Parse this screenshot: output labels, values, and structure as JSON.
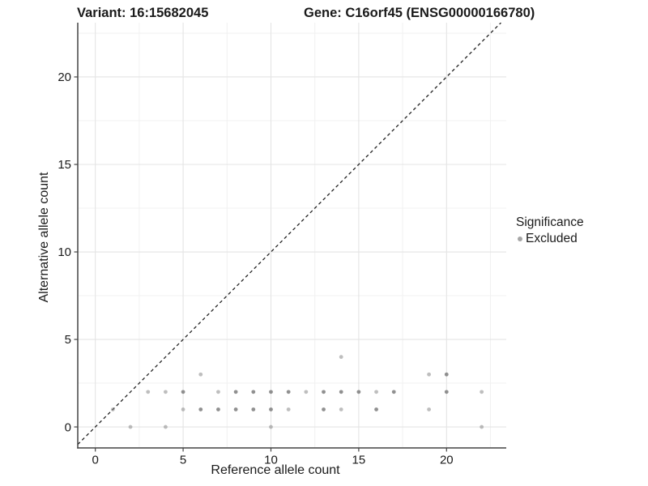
{
  "colors": {
    "background": "#ffffff",
    "grid_major": "#e4e4e4",
    "grid_minor": "#f1f1f1",
    "axis_line": "#444444",
    "tick_text": "#1a1a1a",
    "identity_line": "#222222",
    "point_base": "#7d7d7d",
    "legend_swatch": "#a6a6a6"
  },
  "chart_data": {
    "type": "scatter",
    "title_left": "Variant: 16:15682045",
    "title_right": "Gene: C16orf45 (ENSG00000166780)",
    "xlabel": "Reference allele count",
    "ylabel": "Alternative allele count",
    "xlim": [
      -1.0,
      23.4
    ],
    "ylim": [
      -1.2,
      23.1
    ],
    "x_major_ticks": [
      0,
      5,
      10,
      15,
      20
    ],
    "x_minor_gridlines": [
      2.5,
      7.5,
      12.5,
      17.5,
      22.5
    ],
    "y_major_ticks": [
      0,
      5,
      10,
      15,
      20
    ],
    "y_minor_gridlines": [
      2.5,
      7.5,
      12.5,
      17.5,
      22.5
    ],
    "grid": "major+minor",
    "identity_line": {
      "style": "dashed",
      "equation": "y = x"
    },
    "legend": {
      "title": "Significance",
      "position": "right",
      "items": [
        {
          "label": "Excluded",
          "color": "#7d7d7d",
          "swatch": "#a6a6a6"
        }
      ]
    },
    "series": [
      {
        "name": "Excluded",
        "color": "#7d7d7d",
        "shade_opacity": {
          "l": 0.5,
          "d": 0.85
        },
        "points": [
          [
            2,
            0,
            "l"
          ],
          [
            4,
            0,
            "l"
          ],
          [
            10,
            0,
            "l"
          ],
          [
            22,
            0,
            "l"
          ],
          [
            1,
            1,
            "l"
          ],
          [
            5,
            1,
            "l"
          ],
          [
            6,
            1,
            "d"
          ],
          [
            7,
            1,
            "d"
          ],
          [
            8,
            1,
            "d"
          ],
          [
            9,
            1,
            "d"
          ],
          [
            10,
            1,
            "d"
          ],
          [
            11,
            1,
            "l"
          ],
          [
            13,
            1,
            "d"
          ],
          [
            14,
            1,
            "l"
          ],
          [
            16,
            1,
            "d"
          ],
          [
            19,
            1,
            "l"
          ],
          [
            3,
            2,
            "l"
          ],
          [
            4,
            2,
            "l"
          ],
          [
            5,
            2,
            "d"
          ],
          [
            7,
            2,
            "l"
          ],
          [
            8,
            2,
            "d"
          ],
          [
            9,
            2,
            "d"
          ],
          [
            10,
            2,
            "d"
          ],
          [
            11,
            2,
            "d"
          ],
          [
            12,
            2,
            "l"
          ],
          [
            13,
            2,
            "d"
          ],
          [
            14,
            2,
            "d"
          ],
          [
            15,
            2,
            "d"
          ],
          [
            16,
            2,
            "l"
          ],
          [
            17,
            2,
            "d"
          ],
          [
            20,
            2,
            "d"
          ],
          [
            22,
            2,
            "l"
          ],
          [
            6,
            3,
            "l"
          ],
          [
            19,
            3,
            "l"
          ],
          [
            20,
            3,
            "d"
          ],
          [
            14,
            4,
            "l"
          ]
        ]
      }
    ]
  }
}
